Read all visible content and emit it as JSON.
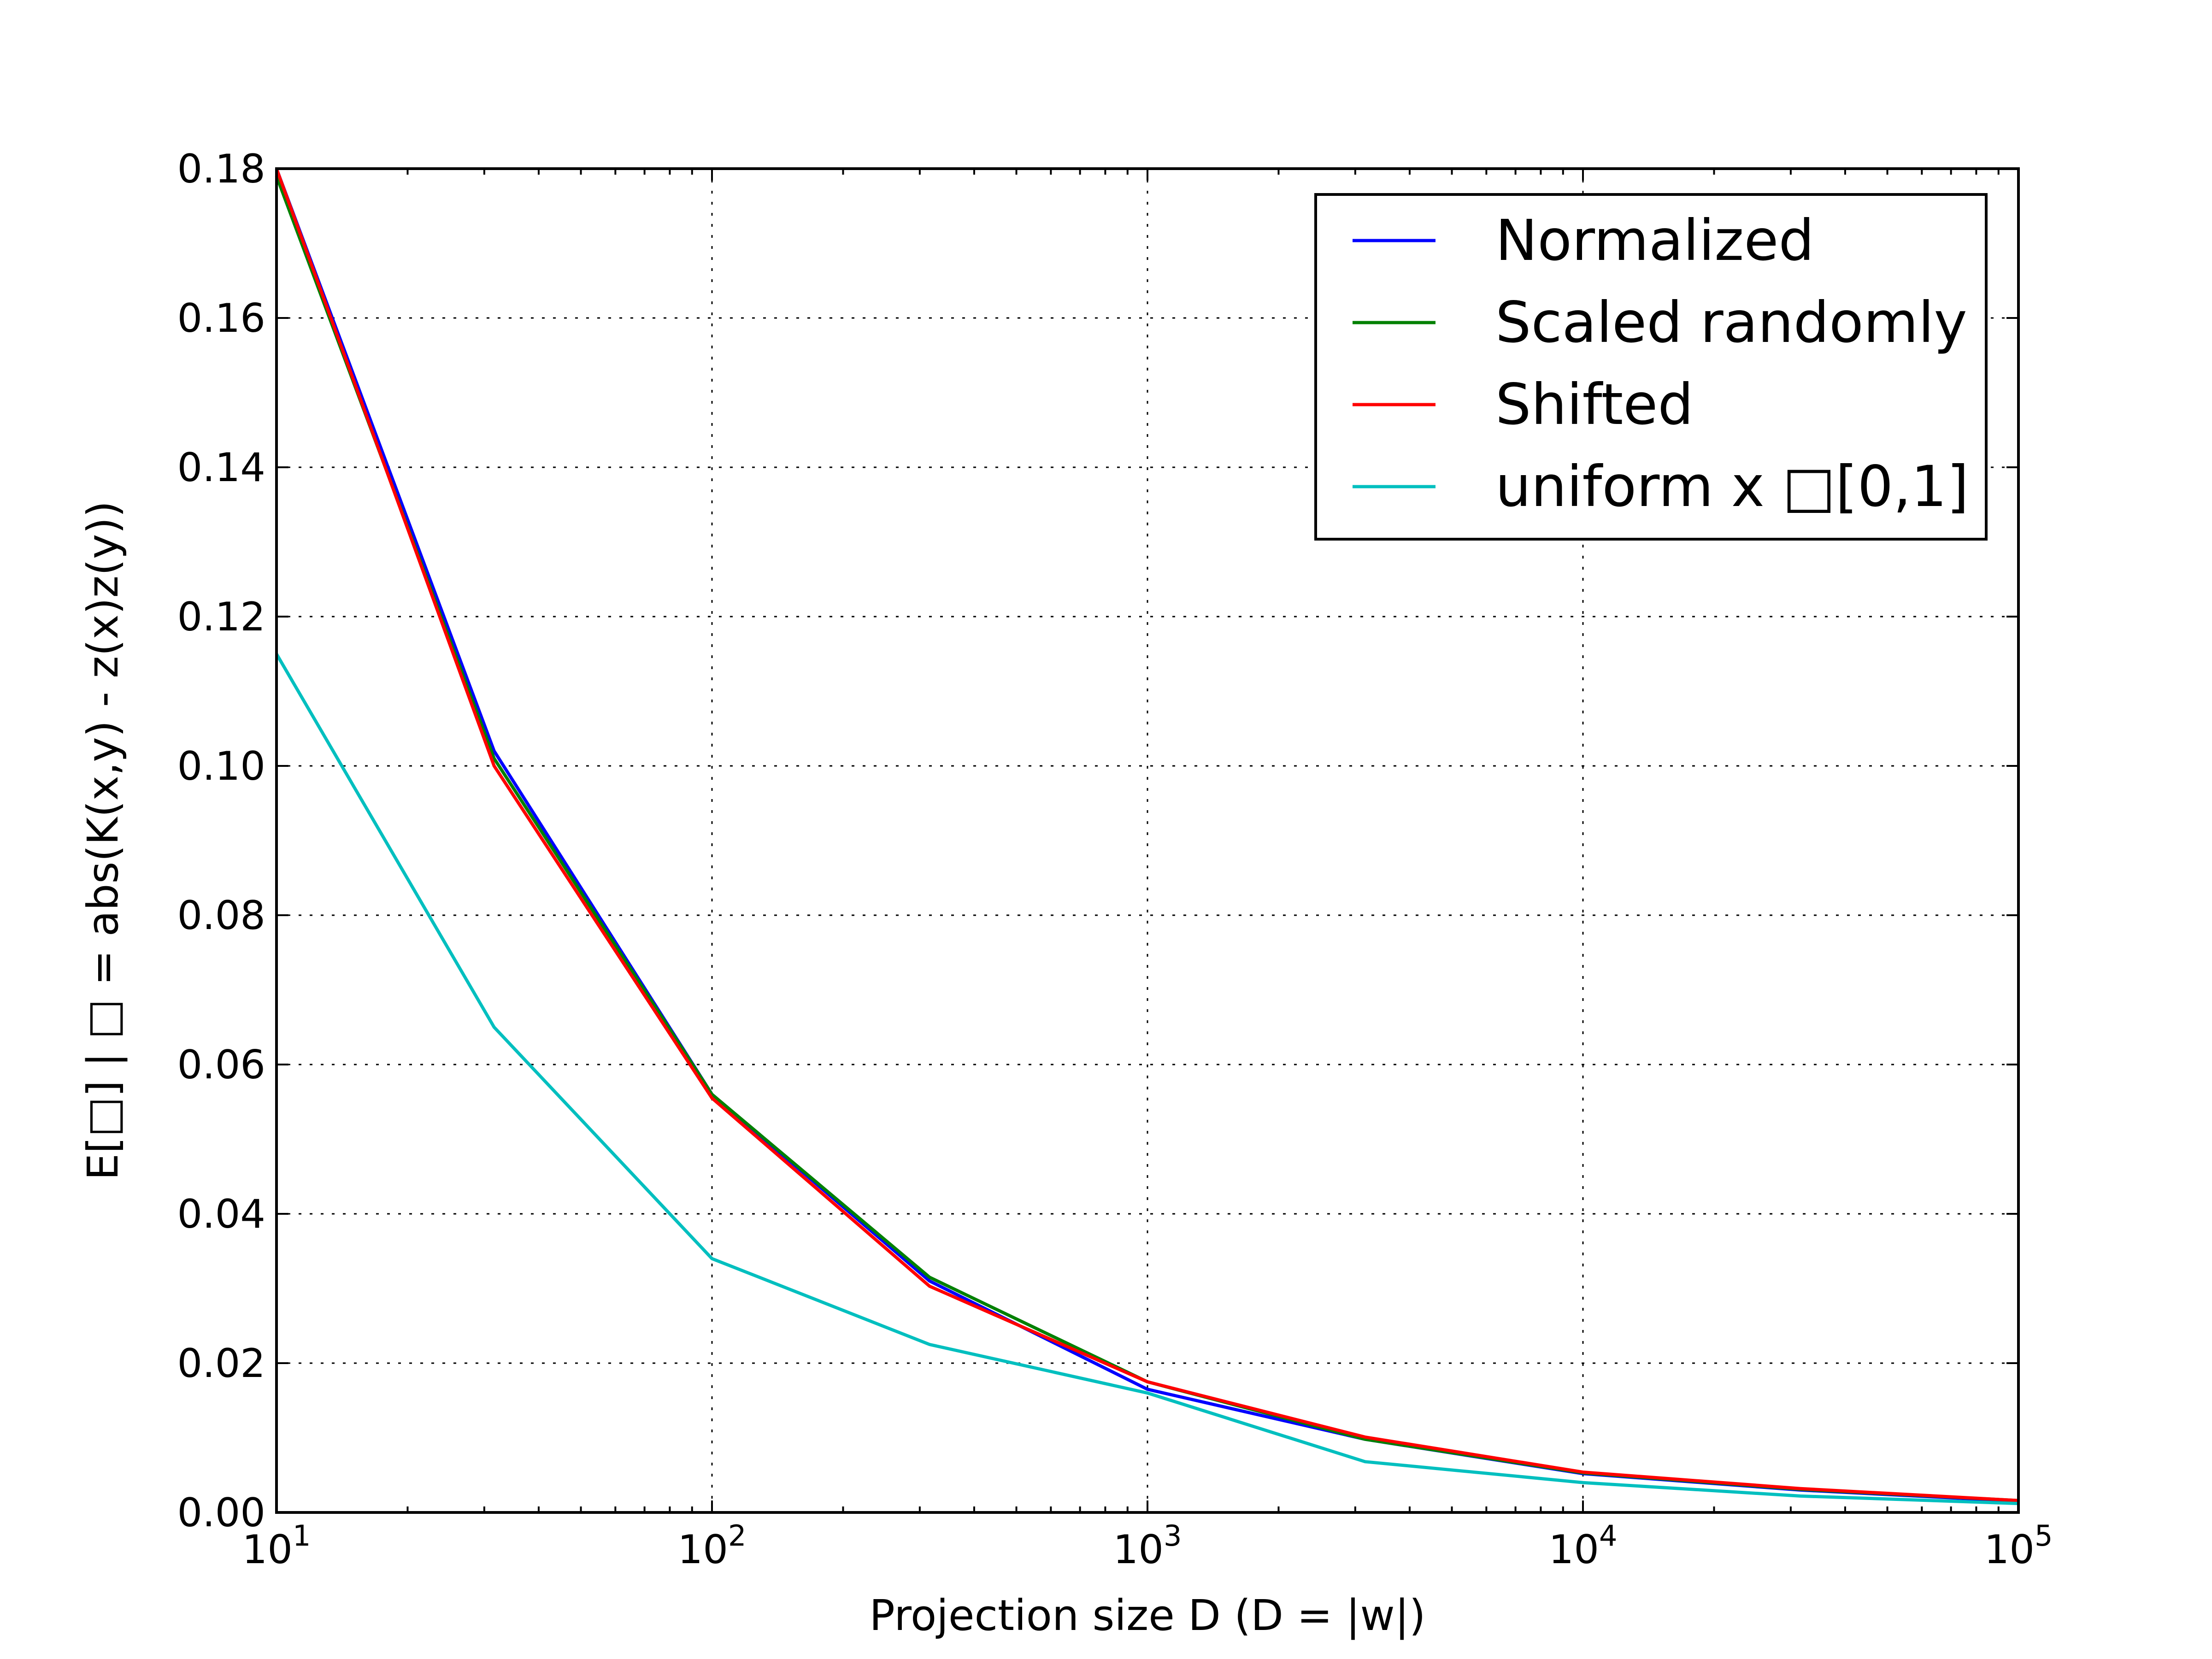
{
  "chart_data": {
    "type": "line",
    "title": "",
    "xlabel": "Projection size D (D = |w|)",
    "ylabel": "E[□] | □ = abs(K(x,y) - z(x)z(y))",
    "xscale": "log",
    "xlim": [
      10,
      100000
    ],
    "ylim": [
      0,
      0.18
    ],
    "grid": true,
    "legend_position": "top-right",
    "x": [
      10,
      31.6,
      100,
      316,
      1000,
      3160,
      10000,
      31600,
      100000
    ],
    "x_ticks": [
      {
        "value": 10,
        "base": "10",
        "exp": "1"
      },
      {
        "value": 100,
        "base": "10",
        "exp": "2"
      },
      {
        "value": 1000,
        "base": "10",
        "exp": "3"
      },
      {
        "value": 10000,
        "base": "10",
        "exp": "4"
      },
      {
        "value": 100000,
        "base": "10",
        "exp": "5"
      }
    ],
    "y_ticks": [
      {
        "value": 0.0,
        "label": "0.00"
      },
      {
        "value": 0.02,
        "label": "0.02"
      },
      {
        "value": 0.04,
        "label": "0.04"
      },
      {
        "value": 0.06,
        "label": "0.06"
      },
      {
        "value": 0.08,
        "label": "0.08"
      },
      {
        "value": 0.1,
        "label": "0.10"
      },
      {
        "value": 0.12,
        "label": "0.12"
      },
      {
        "value": 0.14,
        "label": "0.14"
      },
      {
        "value": 0.16,
        "label": "0.16"
      },
      {
        "value": 0.18,
        "label": "0.18"
      }
    ],
    "series": [
      {
        "name": "Normalized",
        "color": "#0000ff",
        "values": [
          0.18,
          0.102,
          0.056,
          0.031,
          0.0165,
          0.0098,
          0.0052,
          0.003,
          0.0015
        ]
      },
      {
        "name": "Scaled randomly",
        "color": "#008000",
        "values": [
          0.179,
          0.101,
          0.056,
          0.0315,
          0.0175,
          0.0098,
          0.0053,
          0.0031,
          0.0016
        ]
      },
      {
        "name": "Shifted",
        "color": "#ff0000",
        "values": [
          0.18,
          0.1,
          0.0555,
          0.0303,
          0.0175,
          0.0101,
          0.0054,
          0.0032,
          0.0016
        ]
      },
      {
        "name": "uniform x □[0,1]",
        "color": "#00bfbf",
        "values": [
          0.115,
          0.065,
          0.034,
          0.0225,
          0.016,
          0.0068,
          0.004,
          0.0022,
          0.0012
        ]
      }
    ]
  }
}
